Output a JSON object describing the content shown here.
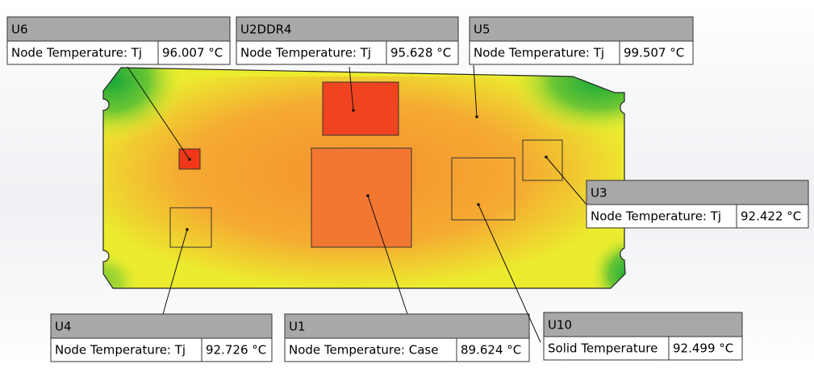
{
  "callouts": [
    {
      "name": "U6",
      "label": "Node Temperature: Tj",
      "value": "96.007 °C"
    },
    {
      "name": "U2DDR4",
      "label": "Node Temperature: Tj",
      "value": "95.628 °C"
    },
    {
      "name": "U5",
      "label": "Node Temperature: Tj",
      "value": "99.507 °C"
    },
    {
      "name": "U3",
      "label": "Node Temperature: Tj",
      "value": "92.422 °C"
    },
    {
      "name": "U4",
      "label": "Node Temperature: Tj",
      "value": "92.726 °C"
    },
    {
      "name": "U1",
      "label": "Node Temperature: Case",
      "value": "89.624 °C"
    },
    {
      "name": "U10",
      "label": "Solid Temperature",
      "value": "92.499 °C"
    }
  ]
}
